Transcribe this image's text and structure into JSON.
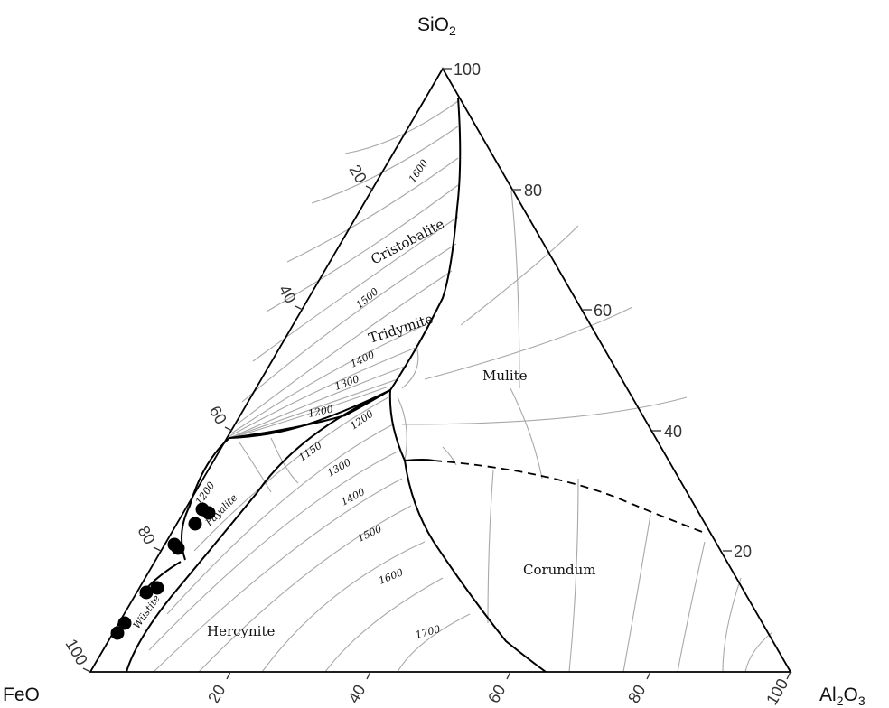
{
  "corners": {
    "top": {
      "base": "SiO",
      "sub": "2",
      "tail": ""
    },
    "left": {
      "base": "FeO",
      "sub": "",
      "tail": ""
    },
    "right": {
      "base": "Al",
      "sub": "2",
      "tail": "O",
      "sub2": "3"
    }
  },
  "ticks": {
    "right_edge": [
      "100",
      "80",
      "60",
      "40",
      "20"
    ],
    "left_edge": [
      "20",
      "40",
      "60",
      "80",
      "100"
    ],
    "bottom_edge": [
      "20",
      "40",
      "60",
      "80",
      "100"
    ]
  },
  "phases": {
    "cristobalite": "Cristobalite",
    "tridymite": "Tridymite",
    "mulite": "Mulite",
    "corundum": "Corundum",
    "hercynite": "Hercynite",
    "fayalite": "Fayalite",
    "wustite": "Wüstite"
  },
  "isotherm_labels": {
    "t1600_top": "1600",
    "t1500_top": "1500",
    "t1400_top": "1400",
    "t1300_top": "1300",
    "t1200_a": "1200",
    "t1200_b": "1200",
    "t1150": "1150",
    "t1300_mid": "1300",
    "t1400_mid": "1400",
    "t1500_mid": "1500",
    "t1600_mid": "1600",
    "t1700": "1700",
    "t1200_fay": "1200"
  },
  "colors": {
    "boundary": "#000000",
    "isotherm": "#a8a8a8",
    "points": "#000000"
  }
}
